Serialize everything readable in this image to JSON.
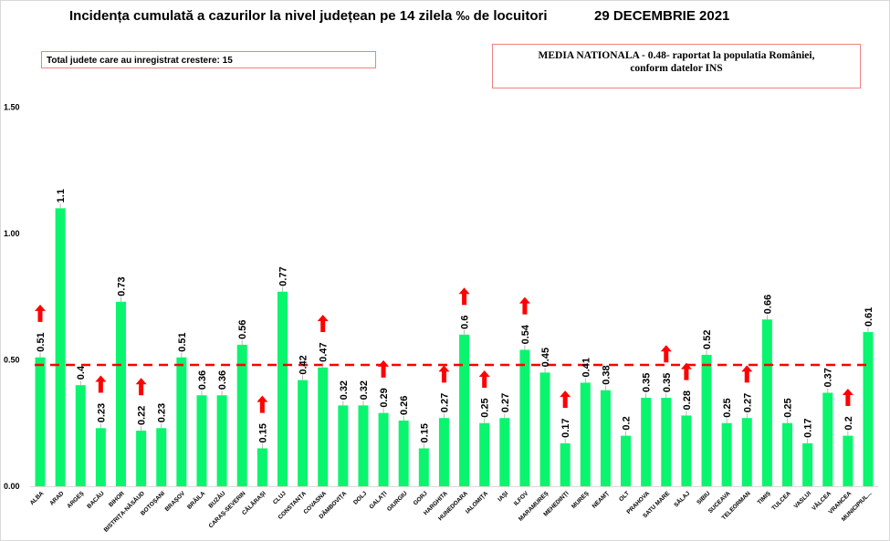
{
  "chart_data": {
    "type": "bar",
    "title": "Incidența cumulată a cazurilor la nivel județean pe 14 zilela ‰ de locuitori",
    "date": "29 DECEMBRIE 2021",
    "xlabel": "",
    "ylabel": "",
    "ylim": [
      0,
      1.5
    ],
    "yticks": [
      0.0,
      0.5,
      1.0,
      1.5
    ],
    "ytick_labels": [
      "0.00",
      "0.50",
      "1.00",
      "1.50"
    ],
    "grid": false,
    "bar_color": "#0af56e",
    "reference_line": {
      "value": 0.48,
      "color": "#ff0000",
      "style": "dashed",
      "label": "MEDIA NATIONALA"
    },
    "increase_marker_color": "#ff0000",
    "categories": [
      "ALBA",
      "ARAD",
      "ARGEȘ",
      "BACĂU",
      "BIHOR",
      "BISTRIȚA-NĂSĂUD",
      "BOTOȘANI",
      "BRAȘOV",
      "BRĂILA",
      "BUZĂU",
      "CARAȘ-SEVERIN",
      "CĂLĂRAȘI",
      "CLUJ",
      "CONSTANȚA",
      "COVASNA",
      "DÂMBOVIȚA",
      "DOLJ",
      "GALAȚI",
      "GIURGIU",
      "GORJ",
      "HARGHITA",
      "HUNEDOARA",
      "IALOMIȚA",
      "IAȘI",
      "ILFOV",
      "MARAMUREȘ",
      "MEHEDINȚI",
      "MUREȘ",
      "NEAMȚ",
      "OLT",
      "PRAHOVA",
      "SATU MARE",
      "SĂLAJ",
      "SIBIU",
      "SUCEAVA",
      "TELEORMAN",
      "TIMIȘ",
      "TULCEA",
      "VASLUI",
      "VÂLCEA",
      "VRANCEA",
      "MUNICIPIUL..."
    ],
    "values": [
      0.51,
      1.1,
      0.4,
      0.23,
      0.73,
      0.22,
      0.23,
      0.51,
      0.36,
      0.36,
      0.56,
      0.15,
      0.77,
      0.42,
      0.47,
      0.32,
      0.32,
      0.29,
      0.26,
      0.15,
      0.27,
      0.6,
      0.25,
      0.27,
      0.54,
      0.45,
      0.17,
      0.41,
      0.38,
      0.2,
      0.35,
      0.35,
      0.28,
      0.52,
      0.25,
      0.27,
      0.66,
      0.25,
      0.17,
      0.37,
      0.2,
      0.61
    ],
    "value_labels": [
      "0.51",
      "1.1",
      "0.4",
      "0.23",
      "0.73",
      "0.22",
      "0.23",
      "0.51",
      "0.36",
      "0.36",
      "0.56",
      "0.15",
      "0.77",
      "0.42",
      "0.47",
      "0.32",
      "0.32",
      "0.29",
      "0.26",
      "0.15",
      "0.27",
      "0.6",
      "0.25",
      "0.27",
      "0.54",
      "0.45",
      "0.17",
      "0.41",
      "0.38",
      "0.2",
      "0.35",
      "0.35",
      "0.28",
      "0.52",
      "0.25",
      "0.27",
      "0.66",
      "0.25",
      "0.17",
      "0.37",
      "0.2",
      "0.61"
    ],
    "increased": [
      true,
      false,
      false,
      true,
      false,
      true,
      false,
      false,
      false,
      false,
      false,
      true,
      false,
      false,
      true,
      false,
      false,
      true,
      false,
      false,
      true,
      true,
      true,
      false,
      true,
      false,
      true,
      false,
      false,
      false,
      false,
      true,
      true,
      false,
      false,
      true,
      false,
      false,
      false,
      false,
      true,
      false
    ]
  },
  "annotations": {
    "total_increase": "Total judete care au inregistrat crestere: 15",
    "media_line1": "MEDIA NATIONALA  - 0.48-  raportat la populatia României,",
    "media_line2": "conform datelor INS"
  }
}
